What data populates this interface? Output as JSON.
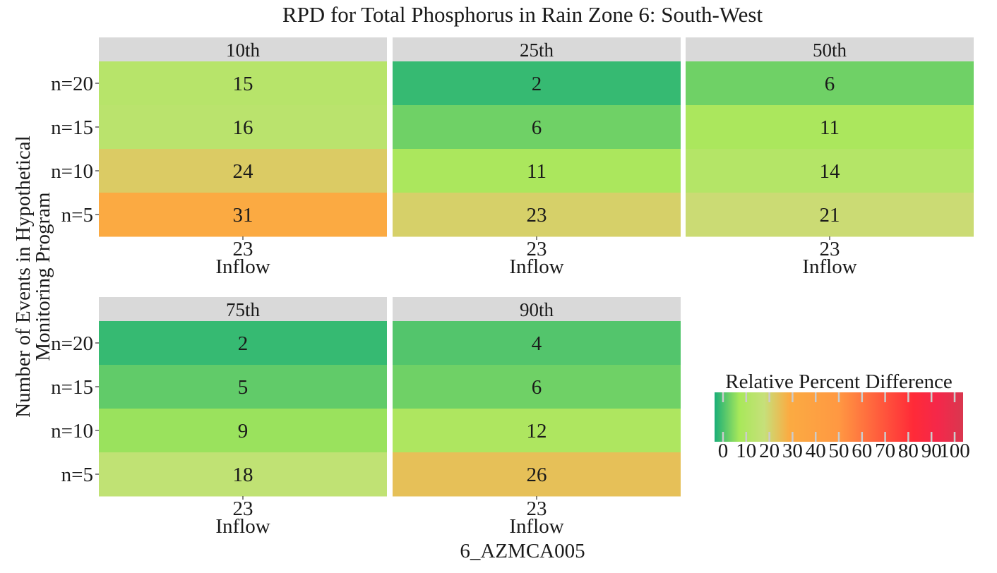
{
  "chart_data": {
    "type": "heatmap",
    "title": "RPD for Total Phosphorus in Rain Zone 6: South-West",
    "xlabel": "6_AZMCA005",
    "ylabel": "Number of Events in Hypothetical Monitoring Program",
    "ylabel_lines": [
      "Number of Events in Hypothetical",
      "Monitoring Program"
    ],
    "y_categories": [
      "n=20",
      "n=15",
      "n=10",
      "n=5"
    ],
    "x_tick": "23",
    "x_sublabel": "Inflow",
    "panels": [
      {
        "label": "10th",
        "values": [
          15,
          16,
          24,
          31
        ]
      },
      {
        "label": "25th",
        "values": [
          2,
          6,
          11,
          23
        ]
      },
      {
        "label": "50th",
        "values": [
          6,
          11,
          14,
          21
        ]
      },
      {
        "label": "75th",
        "values": [
          2,
          5,
          9,
          18
        ]
      },
      {
        "label": "90th",
        "values": [
          4,
          6,
          12,
          26
        ]
      }
    ],
    "legend": {
      "title": "Relative Percent Difference",
      "ticks": [
        0,
        10,
        20,
        30,
        40,
        50,
        60,
        70,
        80,
        90,
        100
      ],
      "range": [
        0,
        100
      ],
      "position": "bottom-right",
      "color_stops": [
        {
          "value": 0,
          "color": "#1aae78"
        },
        {
          "value": 10,
          "color": "#a8e85a"
        },
        {
          "value": 20,
          "color": "#c6e07a"
        },
        {
          "value": 30,
          "color": "#fbab42"
        },
        {
          "value": 50,
          "color": "#ff9842"
        },
        {
          "value": 80,
          "color": "#ff2a38"
        },
        {
          "value": 90,
          "color": "#f4284a"
        },
        {
          "value": 100,
          "color": "#d9374f"
        }
      ]
    },
    "strip_color": "#d9d9d9"
  }
}
